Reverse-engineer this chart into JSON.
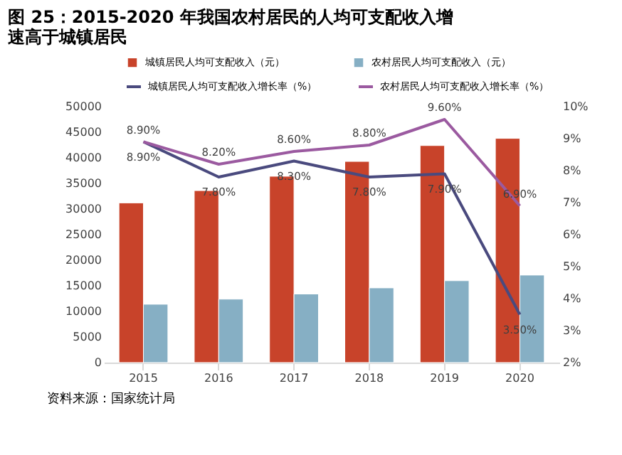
{
  "chart_data": {
    "type": "bar",
    "title": "图 25：2015-2020 年我国农村居民的人均可支配收入增速高于城镇居民",
    "categories": [
      "2015",
      "2016",
      "2017",
      "2018",
      "2019",
      "2020"
    ],
    "series": [
      {
        "name": "城镇居民人均可支配收入（元）",
        "color": "#c8432a",
        "values": [
          31200,
          33600,
          36400,
          39300,
          42400,
          43800
        ]
      },
      {
        "name": "农村居民人均可支配收入（元）",
        "color": "#86afc4",
        "values": [
          11400,
          12400,
          13400,
          14600,
          16000,
          17100
        ]
      },
      {
        "name": "城镇居民人均可支配收入增长率（%）",
        "type": "line",
        "axis": "y2",
        "color": "#4a4a7e",
        "values": [
          8.9,
          7.8,
          8.3,
          7.8,
          7.9,
          3.5
        ],
        "value_labels": [
          "8.90%",
          "7.80%",
          "8.30%",
          "7.80%",
          "7.90%",
          "3.50%"
        ]
      },
      {
        "name": "农村居民人均可支配收入增长率（%）",
        "type": "line",
        "axis": "y2",
        "color": "#9b5aa0",
        "values": [
          8.9,
          8.2,
          8.6,
          8.8,
          9.6,
          6.9
        ],
        "value_labels": [
          "8.90%",
          "8.20%",
          "8.60%",
          "8.80%",
          "9.60%",
          "6.90%"
        ]
      }
    ],
    "ylim": [
      0,
      50000
    ],
    "yticks": [
      0,
      5000,
      10000,
      15000,
      20000,
      25000,
      30000,
      35000,
      40000,
      45000,
      50000
    ],
    "y2lim": [
      2,
      10
    ],
    "y2ticks": [
      {
        "value": 2,
        "label": "2%"
      },
      {
        "value": 3,
        "label": "3%"
      },
      {
        "value": 4,
        "label": "4%"
      },
      {
        "value": 5,
        "label": "5%"
      },
      {
        "value": 6,
        "label": "6%"
      },
      {
        "value": 7,
        "label": "7%"
      },
      {
        "value": 8,
        "label": "8%"
      },
      {
        "value": 9,
        "label": "9%"
      },
      {
        "value": 10,
        "label": "10%"
      }
    ],
    "grid": false,
    "legend": "top",
    "annotations": [
      "资料来源：国家统计局"
    ]
  }
}
